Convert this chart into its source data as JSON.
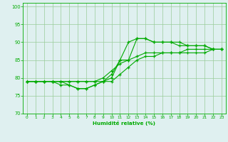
{
  "xlabel": "Humidité relative (%)",
  "x_values": [
    0,
    1,
    2,
    3,
    4,
    5,
    6,
    7,
    8,
    9,
    10,
    11,
    12,
    13,
    14,
    15,
    16,
    17,
    18,
    19,
    20,
    21,
    22,
    23
  ],
  "line1": [
    79,
    79,
    79,
    79,
    78,
    78,
    77,
    77,
    78,
    79,
    80,
    85,
    85,
    91,
    91,
    90,
    90,
    90,
    90,
    89,
    89,
    89,
    88,
    88
  ],
  "line2": [
    79,
    79,
    79,
    79,
    79,
    78,
    77,
    77,
    78,
    79,
    81,
    85,
    90,
    91,
    91,
    90,
    90,
    90,
    89,
    89,
    89,
    89,
    88,
    88
  ],
  "line3": [
    79,
    79,
    79,
    79,
    79,
    79,
    79,
    79,
    79,
    80,
    82,
    84,
    85,
    86,
    87,
    87,
    87,
    87,
    87,
    88,
    88,
    88,
    88,
    88
  ],
  "line4": [
    79,
    79,
    79,
    79,
    79,
    79,
    79,
    79,
    79,
    79,
    79,
    81,
    83,
    85,
    86,
    86,
    87,
    87,
    87,
    87,
    87,
    87,
    88,
    88
  ],
  "line_color": "#00aa00",
  "bg_color": "#dff0f0",
  "grid_color": "#99cc99",
  "ylim": [
    70,
    101
  ],
  "yticks": [
    70,
    75,
    80,
    85,
    90,
    95,
    100
  ],
  "xlim": [
    -0.5,
    23.5
  ],
  "xticks": [
    0,
    1,
    2,
    3,
    4,
    5,
    6,
    7,
    8,
    9,
    10,
    11,
    12,
    13,
    14,
    15,
    16,
    17,
    18,
    19,
    20,
    21,
    22,
    23
  ]
}
